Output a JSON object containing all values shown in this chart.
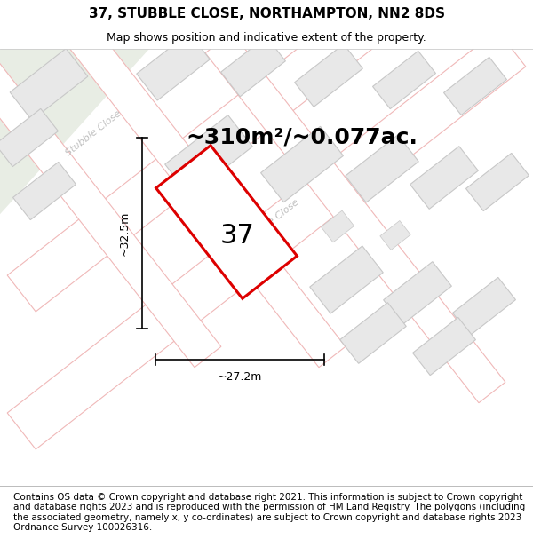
{
  "title": "37, STUBBLE CLOSE, NORTHAMPTON, NN2 8DS",
  "subtitle": "Map shows position and indicative extent of the property.",
  "footer": "Contains OS data © Crown copyright and database right 2021. This information is subject to Crown copyright and database rights 2023 and is reproduced with the permission of HM Land Registry. The polygons (including the associated geometry, namely x, y co-ordinates) are subject to Crown copyright and database rights 2023 Ordnance Survey 100026316.",
  "area_label": "~310m²/~0.077ac.",
  "house_number": "37",
  "dim_width": "~27.2m",
  "dim_height": "~32.5m",
  "map_bg": "#ffffff",
  "road_fill": "#ffffff",
  "road_edge": "#f0b8b8",
  "building_fill": "#e8e8e8",
  "building_stroke": "#c8c8c8",
  "plot_color": "#dd0000",
  "plot_fill": "#ffffff",
  "dim_color": "#000000",
  "road_label_color": "#c0c0c0",
  "green_area": "#e8ede4",
  "title_fontsize": 11,
  "subtitle_fontsize": 9,
  "footer_fontsize": 7.5,
  "area_fontsize": 18,
  "num_fontsize": 22
}
